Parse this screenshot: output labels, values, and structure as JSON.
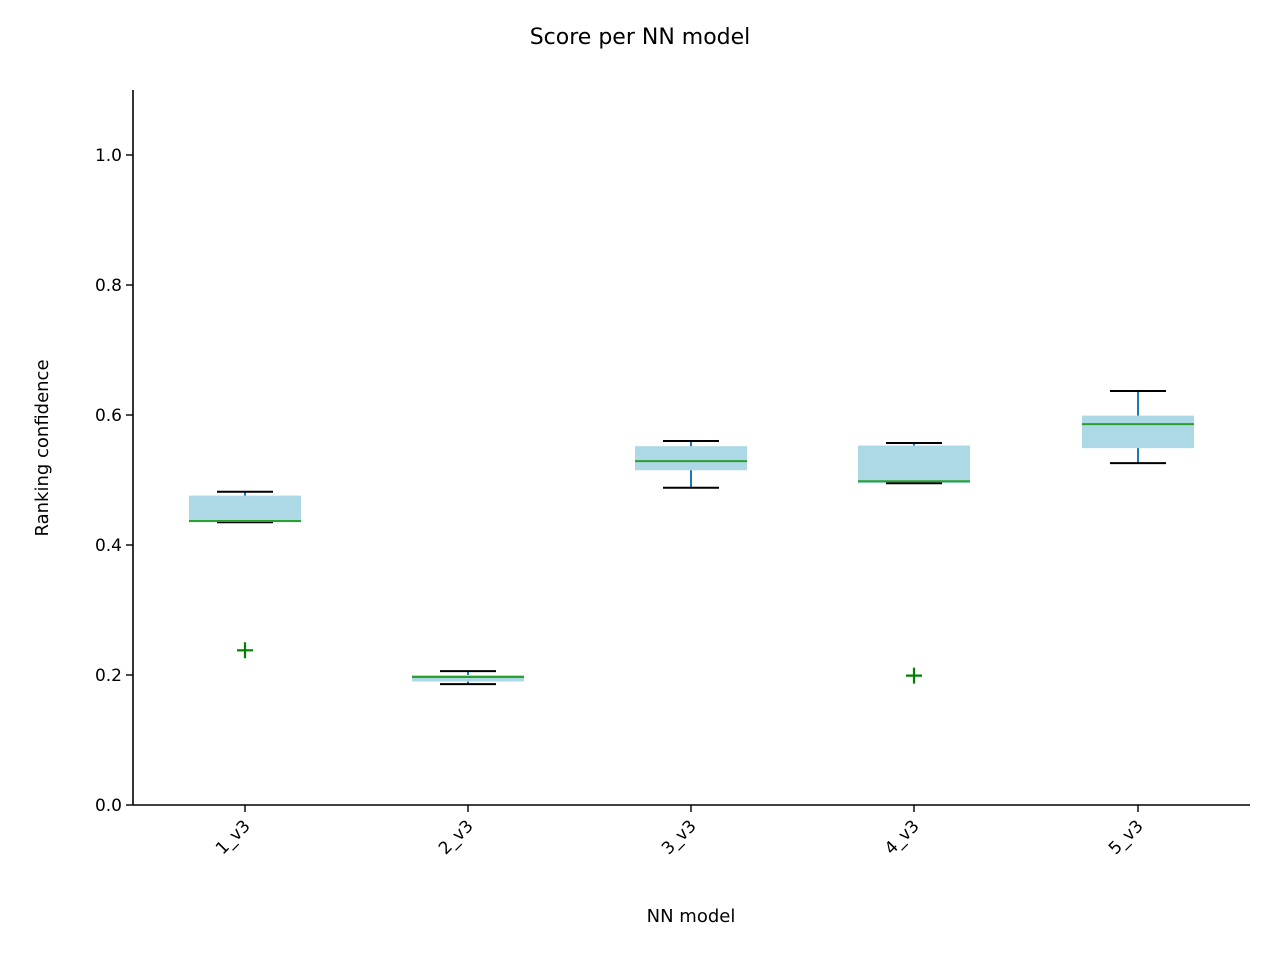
{
  "chart_data": {
    "type": "box",
    "title": "Score per NN model",
    "xlabel": "NN model",
    "ylabel": "Ranking confidence",
    "ylim": [
      0.0,
      1.1
    ],
    "yticks": [
      0.0,
      0.2,
      0.4,
      0.6,
      0.8,
      1.0
    ],
    "ytick_labels": [
      "0.0",
      "0.2",
      "0.4",
      "0.6",
      "0.8",
      "1.0"
    ],
    "categories": [
      "1_v3",
      "2_v3",
      "3_v3",
      "4_v3",
      "5_v3"
    ],
    "boxes": [
      {
        "whisker_low": 0.435,
        "q1": 0.435,
        "median": 0.437,
        "q3": 0.476,
        "whisker_high": 0.482,
        "outliers": [
          0.238
        ]
      },
      {
        "whisker_low": 0.186,
        "q1": 0.19,
        "median": 0.197,
        "q3": 0.2,
        "whisker_high": 0.206,
        "outliers": []
      },
      {
        "whisker_low": 0.488,
        "q1": 0.515,
        "median": 0.529,
        "q3": 0.552,
        "whisker_high": 0.56,
        "outliers": []
      },
      {
        "whisker_low": 0.495,
        "q1": 0.495,
        "median": 0.498,
        "q3": 0.553,
        "whisker_high": 0.557,
        "outliers": [
          0.199
        ]
      },
      {
        "whisker_low": 0.526,
        "q1": 0.549,
        "median": 0.586,
        "q3": 0.599,
        "whisker_high": 0.637,
        "outliers": []
      }
    ],
    "box_color": "#add8e6",
    "median_color": "#2ca02c",
    "whisker_color": "#1f77b4",
    "cap_color": "#000000",
    "outlier_color": "#008000",
    "outlier_marker": "+",
    "grid": false,
    "x_tick_rotation": 45
  }
}
